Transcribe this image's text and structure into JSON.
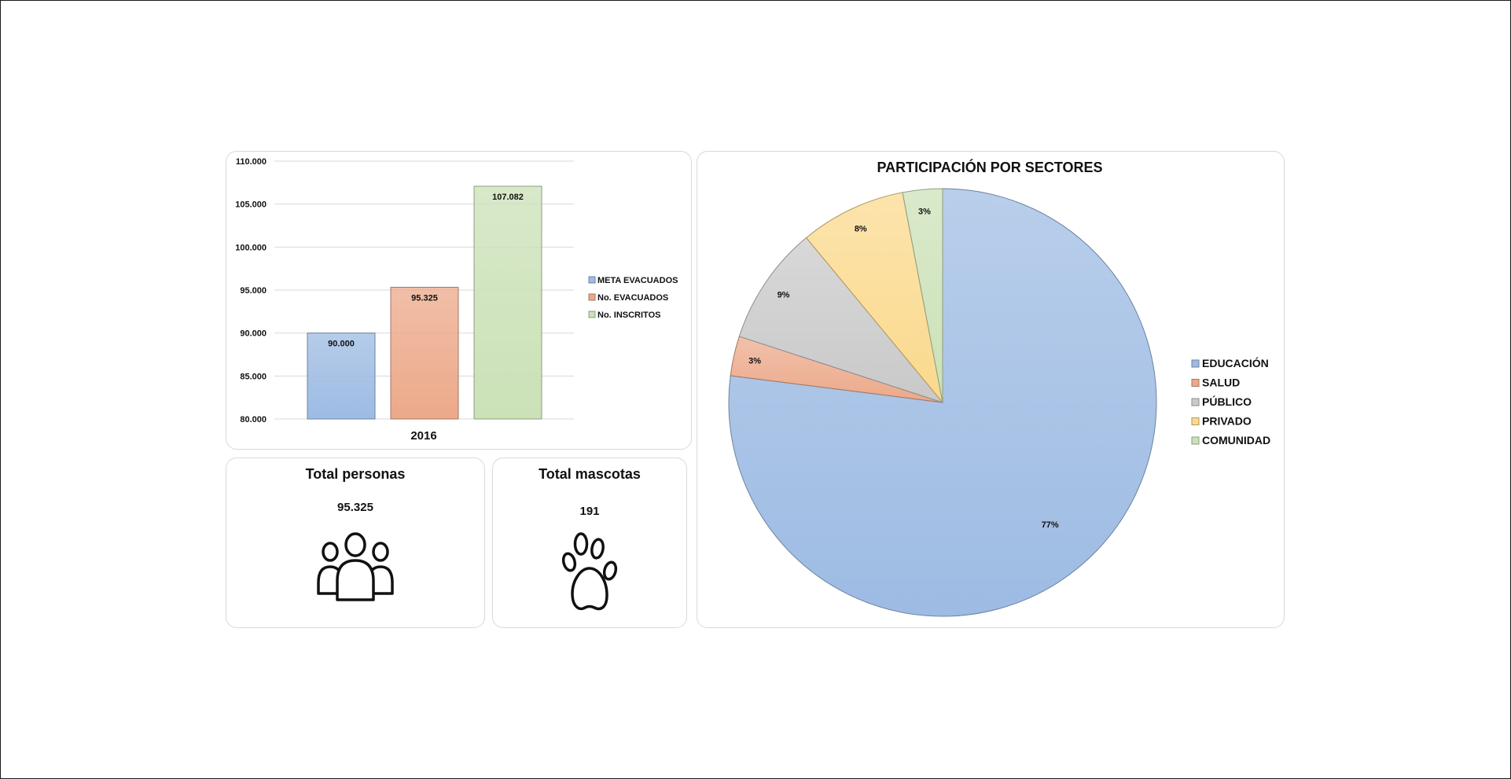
{
  "chart_data": [
    {
      "type": "bar",
      "categories": [
        "2016"
      ],
      "series": [
        {
          "name": "META EVACUADOS",
          "values": [
            90000
          ],
          "label": "90.000",
          "color": "#9dbbe3"
        },
        {
          "name": "No. EVACUADOS",
          "values": [
            95325
          ],
          "label": "95.325",
          "color": "#eca98a"
        },
        {
          "name": "No. INSCRITOS",
          "values": [
            107082
          ],
          "label": "107.082",
          "color": "#cbe1b7"
        }
      ],
      "ylim": [
        80000,
        110000
      ],
      "yticks": [
        80000,
        85000,
        90000,
        95000,
        100000,
        105000,
        110000
      ],
      "ytick_labels": [
        "80.000",
        "85.000",
        "90.000",
        "95.000",
        "100.000",
        "105.000",
        "110.000"
      ],
      "xlabel": "",
      "ylabel": "",
      "title": "",
      "grid": true,
      "legend": "right"
    },
    {
      "type": "pie",
      "title": "PARTICIPACIÓN POR SECTORES",
      "slices": [
        {
          "name": "EDUCACIÓN",
          "value": 77,
          "label": "77%",
          "color": "#9dbbe3"
        },
        {
          "name": "SALUD",
          "value": 3,
          "label": "3%",
          "color": "#eca98a"
        },
        {
          "name": "PÚBLICO",
          "value": 9,
          "label": "9%",
          "color": "#c9c9c9"
        },
        {
          "name": "PRIVADO",
          "value": 8,
          "label": "8%",
          "color": "#fbd98c"
        },
        {
          "name": "COMUNIDAD",
          "value": 3,
          "label": "3%",
          "color": "#cbe1b7"
        }
      ],
      "legend": "right"
    }
  ],
  "kpis": {
    "persons": {
      "title": "Total personas",
      "value": "95.325",
      "icon": "people-icon"
    },
    "pets": {
      "title": "Total mascotas",
      "value": "191",
      "icon": "paw-icon"
    }
  }
}
